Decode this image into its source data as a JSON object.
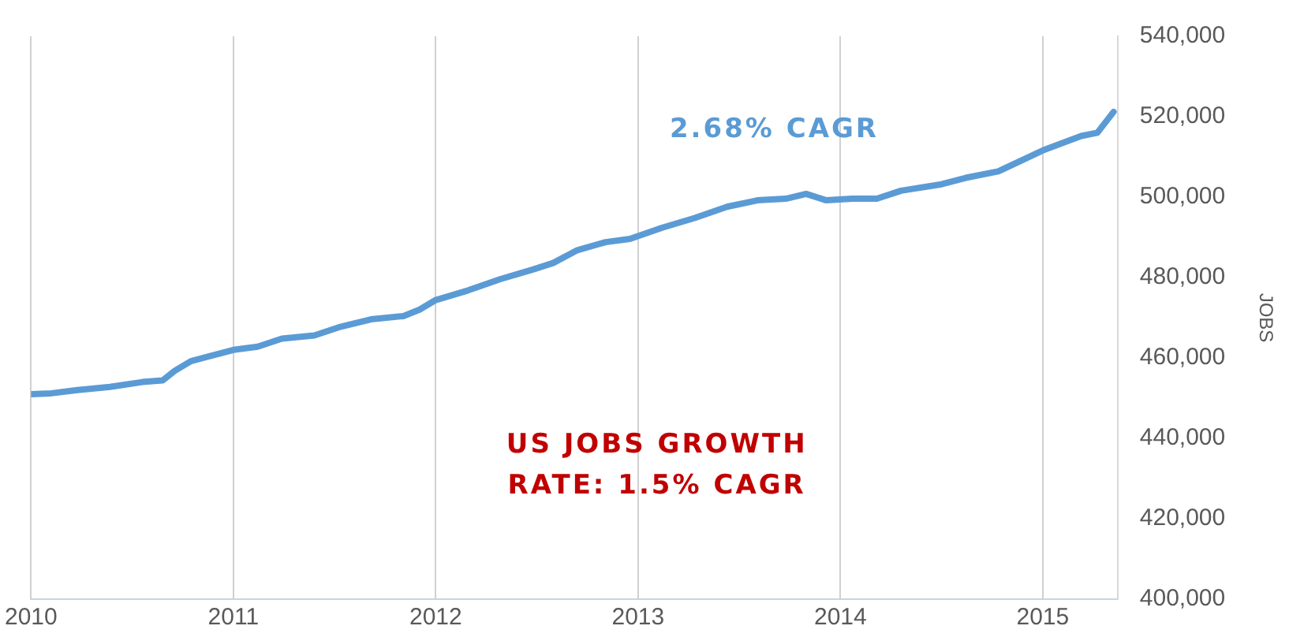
{
  "chart_data": {
    "type": "line",
    "ylabel": "JOBS",
    "x": [
      2010.0,
      2010.1,
      2010.23,
      2010.39,
      2010.55,
      2010.65,
      2010.71,
      2010.79,
      2011.0,
      2011.12,
      2011.24,
      2011.4,
      2011.52,
      2011.68,
      2011.84,
      2011.92,
      2012.0,
      2012.16,
      2012.32,
      2012.48,
      2012.58,
      2012.7,
      2012.84,
      2012.96,
      2013.12,
      2013.28,
      2013.44,
      2013.59,
      2013.73,
      2013.83,
      2013.93,
      2014.06,
      2014.18,
      2014.3,
      2014.5,
      2014.62,
      2014.78,
      2015.0,
      2015.19,
      2015.27,
      2015.35
    ],
    "series": [
      {
        "color": "#5b9bd5",
        "values": [
          451000,
          451200,
          452000,
          452800,
          454000,
          454400,
          456800,
          459200,
          462000,
          462800,
          464800,
          465600,
          467600,
          469600,
          470400,
          472000,
          474400,
          476800,
          479600,
          482000,
          483600,
          486800,
          488800,
          489600,
          492400,
          494800,
          497600,
          499200,
          499600,
          500800,
          499200,
          499600,
          499600,
          501600,
          503200,
          504800,
          506400,
          511600,
          515200,
          516000,
          521200
        ]
      }
    ],
    "xlim": [
      2010,
      2015.37
    ],
    "xticks": [
      2010,
      2011,
      2012,
      2013,
      2014,
      2015
    ],
    "ylim": [
      400000,
      540000
    ],
    "yticks": [
      {
        "value": 400000,
        "label": "400,000"
      },
      {
        "value": 420000,
        "label": "420,000"
      },
      {
        "value": 440000,
        "label": "440,000"
      },
      {
        "value": 460000,
        "label": "460,000"
      },
      {
        "value": 480000,
        "label": "480,000"
      },
      {
        "value": 500000,
        "label": "500,000"
      },
      {
        "value": 520000,
        "label": "520,000"
      },
      {
        "value": 540000,
        "label": "540,000"
      }
    ],
    "grid": "x",
    "marker": "none",
    "line_style": "solid",
    "legend": false,
    "annotations": [
      "2.68% CAGR",
      "US JOBS GROWTH RATE: 1.5% CAGR"
    ]
  }
}
